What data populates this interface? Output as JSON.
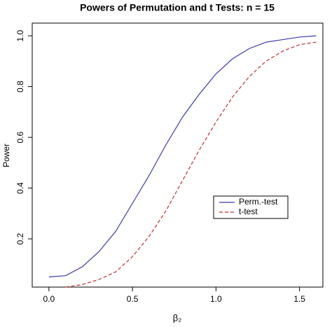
{
  "chart_data": {
    "type": "line",
    "title": "Powers of Permutation and t Tests: n = 15",
    "x_label": "β₂",
    "y_label": "Power",
    "x": [
      0,
      0.1,
      0.2,
      0.3,
      0.4,
      0.5,
      0.6,
      0.7,
      0.8,
      0.9,
      1.0,
      1.1,
      1.2,
      1.3,
      1.4,
      1.5,
      1.6
    ],
    "series": [
      {
        "name": "Perm.-test",
        "color": "#3b3bab",
        "dash": "solid",
        "values": [
          0.05,
          0.055,
          0.09,
          0.15,
          0.23,
          0.34,
          0.45,
          0.57,
          0.68,
          0.77,
          0.85,
          0.91,
          0.95,
          0.975,
          0.985,
          0.995,
          1.0
        ]
      },
      {
        "name": "t-test",
        "color": "#c03030",
        "dash": "dashed",
        "values": [
          null,
          0.01,
          0.02,
          0.04,
          0.07,
          0.13,
          0.21,
          0.31,
          0.43,
          0.55,
          0.66,
          0.76,
          0.84,
          0.9,
          0.94,
          0.965,
          0.975
        ]
      }
    ],
    "xlim": [
      -0.1,
      1.64
    ],
    "ylim": [
      0.01,
      1.05
    ],
    "xticks": [
      {
        "value": 0,
        "label": "0.0"
      },
      0.5,
      {
        "value": 1,
        "label": "1.0"
      },
      1.5
    ],
    "yticks": [
      0.2,
      0.4,
      0.6,
      0.8,
      {
        "value": 1,
        "label": "1.0"
      }
    ],
    "legend": "lower right"
  }
}
